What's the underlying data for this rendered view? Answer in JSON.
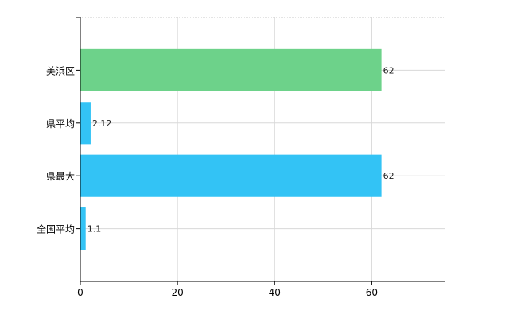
{
  "chart_data": {
    "type": "bar",
    "orientation": "horizontal",
    "categories": [
      "美浜区",
      "県平均",
      "県最大",
      "全国平均"
    ],
    "values": [
      62,
      2.12,
      62,
      1.1
    ],
    "value_labels": [
      "62",
      "2.12",
      "62",
      "1.1"
    ],
    "bar_colors": [
      "#6dd28a",
      "#33c3f5",
      "#33c3f5",
      "#33c3f5"
    ],
    "x_ticks": [
      0,
      20,
      40,
      60
    ],
    "xlim": [
      0,
      75
    ],
    "grid": true,
    "title": "",
    "xlabel": "",
    "ylabel": ""
  }
}
